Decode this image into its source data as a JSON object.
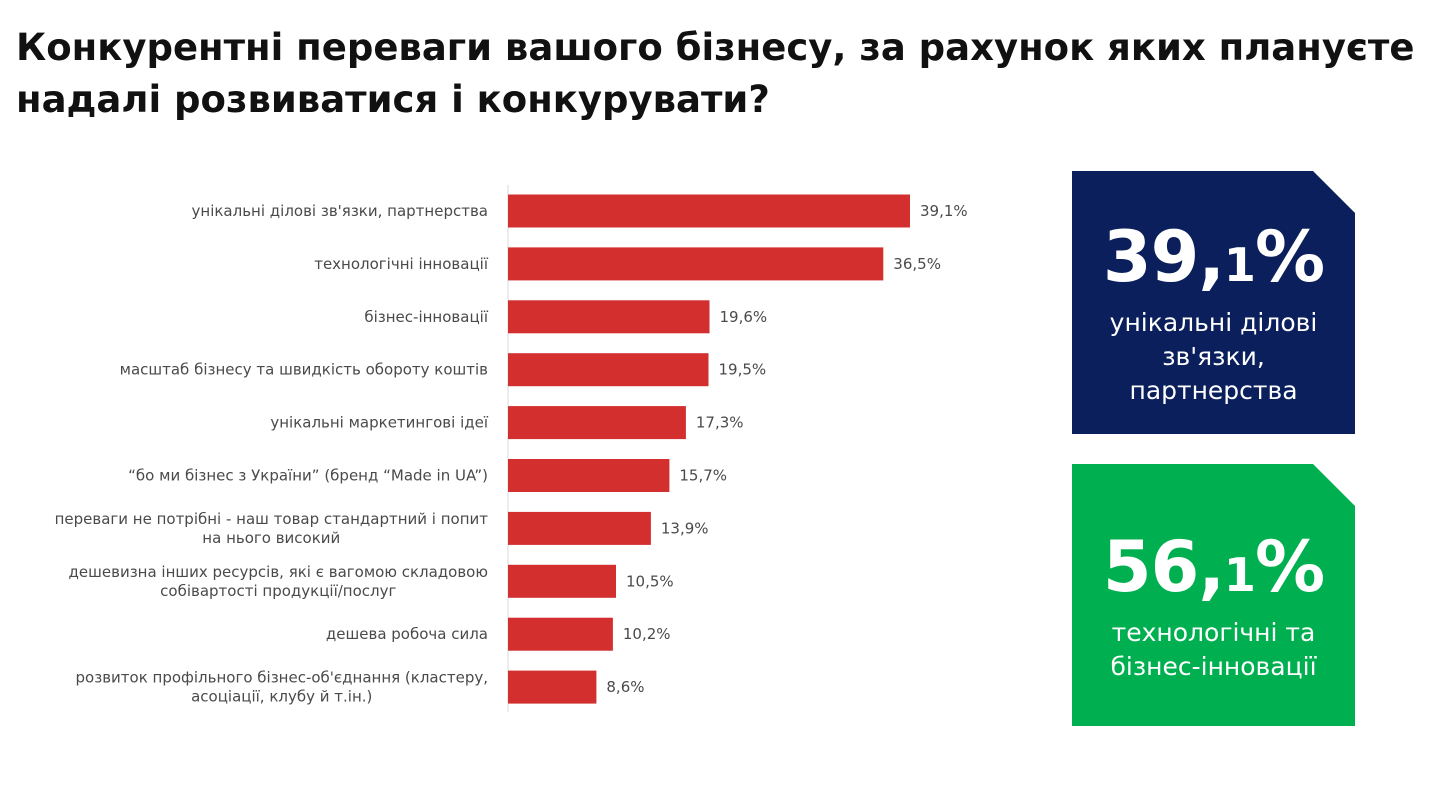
{
  "title": "Конкурентні переваги вашого бізнесу, за рахунок яких плануєте надалі розвиватися і конкурувати?",
  "chart_data": {
    "type": "bar",
    "orientation": "horizontal",
    "categories": [
      [
        "унікальні ділові зв'язки, партнерства"
      ],
      [
        "технологічні інновації"
      ],
      [
        "бізнес-інновації"
      ],
      [
        "масштаб бізнесу та швидкість обороту коштів"
      ],
      [
        "унікальні маркетингові ідеї"
      ],
      [
        "“бо ми бізнес з України” (бренд “Made in UA”)"
      ],
      [
        "переваги не потрібні - наш товар стандартний і попит",
        "на нього високий"
      ],
      [
        "дешевизна інших ресурсів, які є вагомою складовою",
        "собівартості продукції/послуг"
      ],
      [
        "дешева робоча сила"
      ],
      [
        "розвиток профільного бізнес-об'єднання (кластеру,",
        "асоціації, клубу й т.ін.)"
      ]
    ],
    "values": [
      39.1,
      36.5,
      19.6,
      19.5,
      17.3,
      15.7,
      13.9,
      10.5,
      10.2,
      8.6
    ],
    "value_labels": [
      "39,1%",
      "36,5%",
      "19,6%",
      "19,5%",
      "17,3%",
      "15,7%",
      "13,9%",
      "10,5%",
      "10,2%",
      "8,6%"
    ],
    "unit": "%",
    "xlim": [
      0,
      40
    ],
    "grid": false,
    "bar_color": "#d32f2f"
  },
  "cards": [
    {
      "number_main": "39,",
      "number_small": "1",
      "number_pct": "%",
      "caption_lines": [
        "унікальні ділові",
        "зв'язки,",
        "партнерства"
      ],
      "color": "#0a1f5c"
    },
    {
      "number_main": "56,",
      "number_small": "1",
      "number_pct": "%",
      "caption_lines": [
        "технологічні та",
        "бізнес-інновації"
      ],
      "color": "#00b050"
    }
  ],
  "colors": {
    "axis": "#d9d9d9",
    "text": "#111111",
    "label_text": "#4a4a4a"
  }
}
